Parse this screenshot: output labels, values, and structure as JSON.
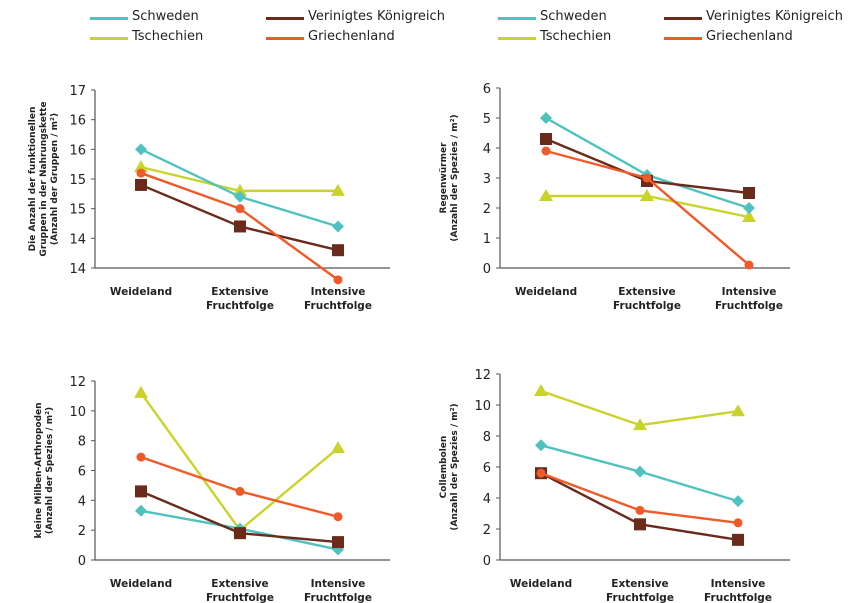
{
  "series_styles": [
    {
      "name": "Schweden",
      "color": "#4fc2c0",
      "marker": "diamond"
    },
    {
      "name": "Verinigtes Königreich",
      "color": "#6b2b1a",
      "marker": "square"
    },
    {
      "name": "Tschechien",
      "color": "#c9d32a",
      "marker": "triangle"
    },
    {
      "name": "Griechenland",
      "color": "#f05a28",
      "marker": "circle"
    }
  ],
  "legend": {
    "left": [
      "Schweden",
      "Verinigtes Königreich",
      "Tschechien",
      "Griechenland"
    ],
    "right": [
      "Schweden",
      "Verinigtes Königreich",
      "Tschechien",
      "Griechenland"
    ]
  },
  "chart_data": [
    {
      "type": "line",
      "categories": [
        "Weideland",
        "Extensive\nFruchtfolge",
        "Intensive\nFruchtfolge"
      ],
      "ylabel": "Die Anzahl der funktionellen\nGruppen in der Nahrungskette\n(Anzahl der Gruppen / m²)",
      "yticks": [
        "14",
        "14",
        "15",
        "15",
        "16",
        "16",
        "17"
      ],
      "ylim": [
        14,
        17
      ],
      "series": [
        {
          "name": "Schweden",
          "values": [
            16.0,
            15.2,
            14.7
          ]
        },
        {
          "name": "Verinigtes Königreich",
          "values": [
            15.4,
            14.7,
            14.3
          ]
        },
        {
          "name": "Tschechien",
          "values": [
            15.7,
            15.3,
            15.3
          ]
        },
        {
          "name": "Griechenland",
          "values": [
            15.6,
            15.0,
            13.8
          ]
        }
      ]
    },
    {
      "type": "line",
      "categories": [
        "Weideland",
        "Extensive\nFruchtfolge",
        "Intensive\nFruchtfolge"
      ],
      "ylabel": "Regenwürmer\n(Anzahl der Spezies / m²)",
      "yticks": [
        "0",
        "1",
        "2",
        "3",
        "4",
        "5",
        "6"
      ],
      "ylim": [
        0,
        6
      ],
      "series": [
        {
          "name": "Schweden",
          "values": [
            5.0,
            3.1,
            2.0
          ]
        },
        {
          "name": "Verinigtes Königreich",
          "values": [
            4.3,
            2.9,
            2.5
          ]
        },
        {
          "name": "Tschechien",
          "values": [
            2.4,
            2.4,
            1.7
          ]
        },
        {
          "name": "Griechenland",
          "values": [
            3.9,
            3.0,
            0.1
          ]
        }
      ]
    },
    {
      "type": "line",
      "categories": [
        "Weideland",
        "Extensive\nFruchtfolge",
        "Intensive\nFruchtfolge"
      ],
      "ylabel": "kleine Milben-Arthropoden\n(Anzahl der Spezies / m²)",
      "yticks": [
        "0",
        "2",
        "4",
        "6",
        "8",
        "10",
        "12"
      ],
      "ylim": [
        0,
        12
      ],
      "series": [
        {
          "name": "Schweden",
          "values": [
            3.3,
            2.1,
            0.7
          ]
        },
        {
          "name": "Verinigtes Königreich",
          "values": [
            4.6,
            1.8,
            1.2
          ]
        },
        {
          "name": "Tschechien",
          "values": [
            11.2,
            2.0,
            7.5
          ]
        },
        {
          "name": "Griechenland",
          "values": [
            6.9,
            4.6,
            2.9
          ]
        }
      ]
    },
    {
      "type": "line",
      "categories": [
        "Weideland",
        "Extensive\nFruchtfolge",
        "Intensive\nFruchtfolge"
      ],
      "ylabel": "Collembolen\n(Anzahl der Spezies / m²)",
      "yticks": [
        "0",
        "2",
        "4",
        "6",
        "8",
        "10",
        "12"
      ],
      "ylim": [
        0,
        12
      ],
      "series": [
        {
          "name": "Schweden",
          "values": [
            7.4,
            5.7,
            3.8
          ]
        },
        {
          "name": "Verinigtes Königreich",
          "values": [
            5.6,
            2.3,
            1.3
          ]
        },
        {
          "name": "Tschechien",
          "values": [
            10.9,
            8.7,
            9.6
          ]
        },
        {
          "name": "Griechenland",
          "values": [
            5.6,
            3.2,
            2.4
          ]
        }
      ]
    }
  ]
}
